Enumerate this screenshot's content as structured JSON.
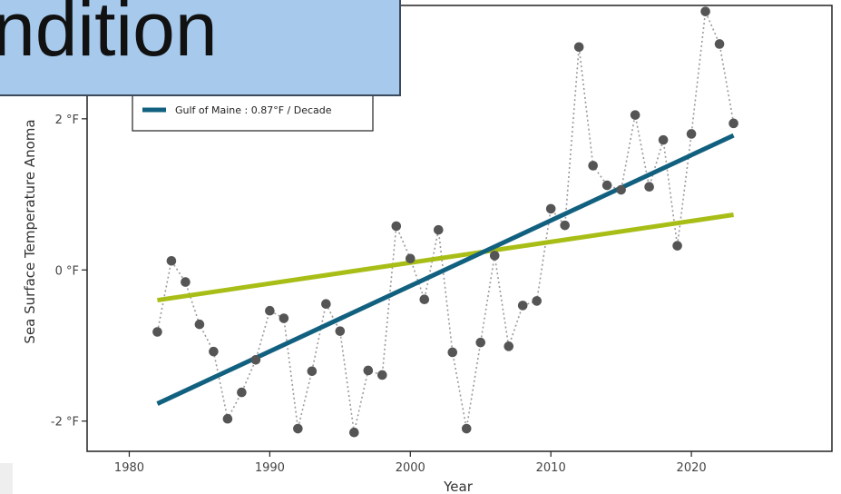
{
  "banner": {
    "text": "ndition"
  },
  "colors": {
    "gulf_of_maine_trend": "#11607f",
    "other_trend": "#a8be16",
    "points": "#555555",
    "dotted_line": "#9a9a9a",
    "banner_fill": "#a6c9ec",
    "banner_border": "#3b4a5c"
  },
  "chart_data": {
    "type": "scatter",
    "xlabel": "Year",
    "ylabel": "Sea Surface Temperature Anoma",
    "xlim": [
      1977,
      2030
    ],
    "ylim": [
      -2.4,
      3.5
    ],
    "x_ticks": [
      1980,
      1990,
      2000,
      2010,
      2020
    ],
    "x_tick_labels": [
      "1980",
      "1990",
      "2000",
      "2010",
      "2020"
    ],
    "y_ticks": [
      -2,
      0,
      2
    ],
    "y_tick_labels": [
      "-2 °F",
      "0 °F",
      "2 °F"
    ],
    "grid": false,
    "legend": {
      "position": "top-left",
      "entries": [
        "Gulf of Maine : 0.87°F / Decade"
      ]
    },
    "series": [
      {
        "name": "Gulf of Maine",
        "style": "points-dotted",
        "x": [
          1982,
          1983,
          1984,
          1985,
          1986,
          1987,
          1988,
          1989,
          1990,
          1991,
          1992,
          1993,
          1994,
          1995,
          1996,
          1997,
          1998,
          1999,
          2000,
          2001,
          2002,
          2003,
          2004,
          2005,
          2006,
          2007,
          2008,
          2009,
          2010,
          2011,
          2012,
          2013,
          2014,
          2015,
          2016,
          2017,
          2018,
          2019,
          2020,
          2021,
          2022,
          2023
        ],
        "y": [
          -0.82,
          0.12,
          -0.16,
          -0.72,
          -1.08,
          -1.97,
          -1.62,
          -1.19,
          -0.54,
          -0.64,
          -2.1,
          -1.34,
          -0.45,
          -0.81,
          -2.15,
          -1.33,
          -1.39,
          0.58,
          0.15,
          -0.39,
          0.53,
          -1.09,
          -2.1,
          -0.96,
          0.19,
          -1.01,
          -0.47,
          -0.41,
          0.81,
          0.59,
          2.95,
          1.38,
          1.12,
          1.06,
          2.05,
          1.1,
          1.72,
          0.32,
          1.8,
          3.42,
          2.99,
          1.94
        ]
      },
      {
        "name": "Gulf of Maine : 0.87°F / Decade",
        "style": "trend-line",
        "x": [
          1982,
          2023
        ],
        "y": [
          -1.77,
          1.78
        ]
      },
      {
        "name": "",
        "style": "trend-line",
        "x": [
          1982,
          2023
        ],
        "y": [
          -0.4,
          0.73
        ]
      }
    ]
  }
}
